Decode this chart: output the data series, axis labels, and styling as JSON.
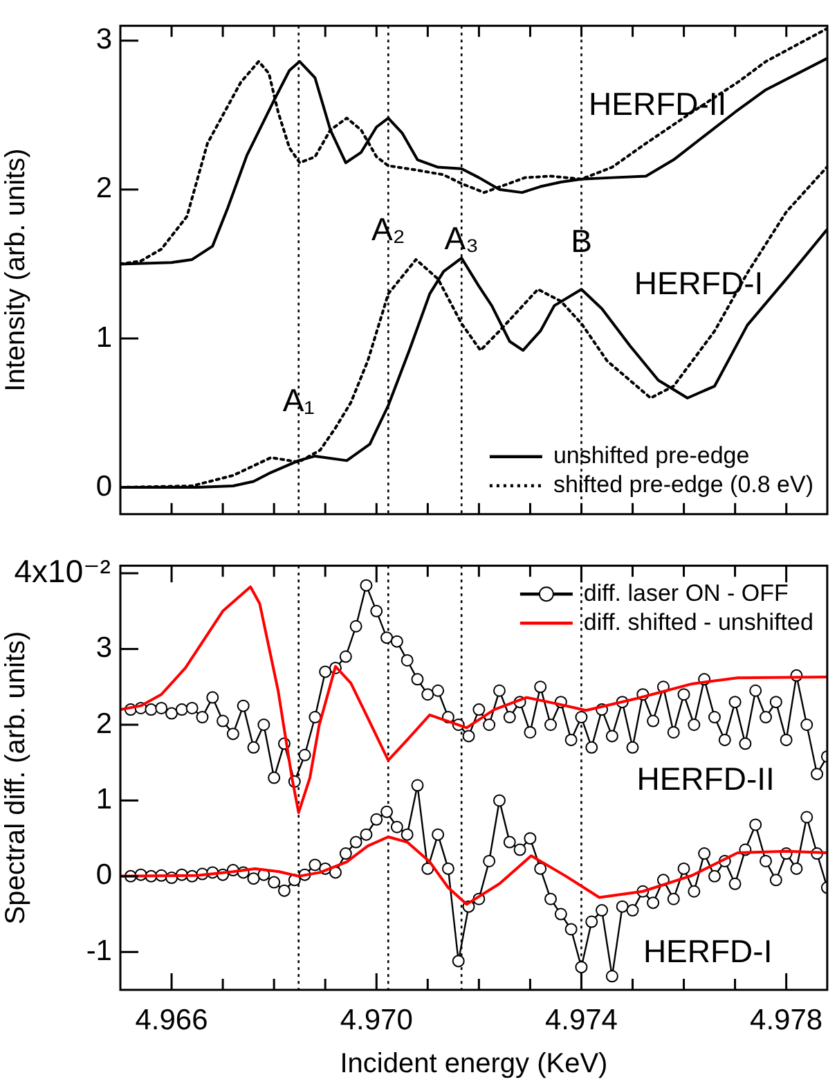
{
  "chart_data": [
    {
      "type": "line",
      "ylabel": "Intensity (arb. units)",
      "xlim": [
        4.965,
        4.9788
      ],
      "ylim": [
        -0.18,
        3.1
      ],
      "xticks": [
        {
          "value": 4.966,
          "label": null
        },
        {
          "value": 4.967,
          "label": null
        },
        {
          "value": 4.968,
          "label": null
        },
        {
          "value": 4.969,
          "label": null
        },
        {
          "value": 4.97,
          "label": null
        },
        {
          "value": 4.971,
          "label": null
        },
        {
          "value": 4.972,
          "label": null
        },
        {
          "value": 4.973,
          "label": null
        },
        {
          "value": 4.974,
          "label": null
        },
        {
          "value": 4.975,
          "label": null
        },
        {
          "value": 4.976,
          "label": null
        },
        {
          "value": 4.977,
          "label": null
        },
        {
          "value": 4.978,
          "label": null
        }
      ],
      "yticks": [
        0,
        1,
        2,
        3
      ],
      "tick_labels": "y",
      "grid": false,
      "legend": "bottom right",
      "ref_lines": [
        {
          "axis": "x",
          "value": 4.96848,
          "line_style": "dotted",
          "color": "#000000"
        },
        {
          "axis": "x",
          "value": 4.97023,
          "line_style": "dotted",
          "color": "#000000"
        },
        {
          "axis": "x",
          "value": 4.97166,
          "line_style": "dotted",
          "color": "#000000"
        },
        {
          "axis": "x",
          "value": 4.974,
          "line_style": "dotted",
          "color": "#000000"
        }
      ],
      "annotations": [
        {
          "text": "A₁",
          "x": 4.96848,
          "y": 0.57
        },
        {
          "text": "A₂",
          "x": 4.97023,
          "y": 1.72
        },
        {
          "text": "A₃",
          "x": 4.97166,
          "y": 1.66
        },
        {
          "text": "B",
          "x": 4.974,
          "y": 1.64
        },
        "HERFD-II",
        "HERFD-I"
      ],
      "series": [
        {
          "type": "line",
          "color": "#000000",
          "line_style": "solid",
          "x": [
            4.965,
            4.966,
            4.9664,
            4.9668,
            4.9671,
            4.96747,
            4.968,
            4.9683,
            4.9685,
            4.9688,
            4.9691,
            4.9694,
            4.9697,
            4.97,
            4.97023,
            4.9705,
            4.9708,
            4.9712,
            4.97166,
            4.972,
            4.9724,
            4.97284,
            4.9732,
            4.9736,
            4.974,
            4.9746,
            4.97526,
            4.9758,
            4.9764,
            4.977,
            4.9776,
            4.97879
          ],
          "values": [
            1.5,
            1.51,
            1.53,
            1.62,
            1.88,
            2.23,
            2.6,
            2.8,
            2.86,
            2.75,
            2.4,
            2.18,
            2.25,
            2.42,
            2.48,
            2.38,
            2.2,
            2.15,
            2.14,
            2.08,
            2.0,
            1.98,
            2.02,
            2.05,
            2.07,
            2.08,
            2.09,
            2.2,
            2.36,
            2.52,
            2.67,
            2.88
          ]
        },
        {
          "type": "line",
          "color": "#000000",
          "line_style": "dotted",
          "x": [
            4.965,
            4.9654,
            4.9658,
            4.9663,
            4.9667,
            4.96735,
            4.9677,
            4.9679,
            4.96808,
            4.9683,
            4.9685,
            4.9688,
            4.9691,
            4.96942,
            4.9697,
            4.97,
            4.97023,
            4.9708,
            4.9713,
            4.97166,
            4.9721,
            4.9725,
            4.9729,
            4.9734,
            4.974,
            4.9746,
            4.97526,
            4.97616,
            4.97705,
            4.9776,
            4.97879
          ],
          "values": [
            1.5,
            1.52,
            1.6,
            1.82,
            2.31,
            2.72,
            2.86,
            2.78,
            2.52,
            2.28,
            2.18,
            2.22,
            2.4,
            2.48,
            2.4,
            2.22,
            2.16,
            2.13,
            2.1,
            2.04,
            1.98,
            2.03,
            2.08,
            2.09,
            2.07,
            2.15,
            2.31,
            2.52,
            2.72,
            2.86,
            3.08
          ]
        },
        {
          "type": "line",
          "name": "unshifted pre-edge",
          "color": "#000000",
          "line_style": "solid",
          "x": [
            4.965,
            4.9665,
            4.9672,
            4.9676,
            4.96794,
            4.96848,
            4.9688,
            4.96942,
            4.96987,
            4.97023,
            4.97064,
            4.97104,
            4.97131,
            4.97166,
            4.972,
            4.97225,
            4.9726,
            4.97286,
            4.9732,
            4.97347,
            4.974,
            4.9744,
            4.97495,
            4.9755,
            4.97607,
            4.9766,
            4.97724,
            4.97805,
            4.97879
          ],
          "values": [
            0,
            0,
            0.01,
            0.04,
            0.1,
            0.18,
            0.21,
            0.18,
            0.29,
            0.55,
            0.92,
            1.3,
            1.45,
            1.54,
            1.35,
            1.22,
            0.98,
            0.92,
            1.05,
            1.22,
            1.33,
            1.2,
            0.95,
            0.72,
            0.6,
            0.68,
            1.09,
            1.42,
            1.73
          ]
        },
        {
          "type": "line",
          "name": "shifted pre-edge (0.8 eV)",
          "color": "#000000",
          "line_style": "dotted",
          "x": [
            4.965,
            4.9664,
            4.9672,
            4.96794,
            4.96848,
            4.9689,
            4.9692,
            4.9695,
            4.96983,
            4.97023,
            4.97077,
            4.9712,
            4.97166,
            4.97203,
            4.9724,
            4.97315,
            4.9736,
            4.974,
            4.9745,
            4.97535,
            4.9758,
            4.9766,
            4.97724,
            4.978,
            4.97879
          ],
          "values": [
            0,
            0.01,
            0.08,
            0.2,
            0.17,
            0.25,
            0.4,
            0.57,
            0.85,
            1.3,
            1.53,
            1.4,
            1.1,
            0.92,
            1.05,
            1.33,
            1.25,
            1.1,
            0.85,
            0.6,
            0.68,
            1.05,
            1.44,
            1.85,
            2.15
          ]
        }
      ]
    },
    {
      "type": "line",
      "xlabel": "Incident energy (KeV)",
      "ylabel": "Spectral diff. (arb. units)",
      "xlim": [
        4.965,
        4.9788
      ],
      "ylim": [
        -1.5,
        4.1
      ],
      "xticks": [
        {
          "value": 4.966,
          "label": "4.966"
        },
        {
          "value": 4.967,
          "label": null
        },
        {
          "value": 4.968,
          "label": null
        },
        {
          "value": 4.969,
          "label": null
        },
        {
          "value": 4.97,
          "label": "4.970"
        },
        {
          "value": 4.971,
          "label": null
        },
        {
          "value": 4.972,
          "label": null
        },
        {
          "value": 4.973,
          "label": null
        },
        {
          "value": 4.974,
          "label": "4.974"
        },
        {
          "value": 4.975,
          "label": null
        },
        {
          "value": 4.976,
          "label": null
        },
        {
          "value": 4.977,
          "label": null
        },
        {
          "value": 4.978,
          "label": "4.978"
        }
      ],
      "yticks": [
        -1,
        0,
        1,
        2,
        3,
        {
          "value": 4,
          "label": null
        }
      ],
      "grid": false,
      "legend": "top right",
      "ref_lines": [
        {
          "axis": "x",
          "value": 4.96848,
          "line_style": "dotted",
          "color": "#000000"
        },
        {
          "axis": "x",
          "value": 4.97023,
          "line_style": "dotted",
          "color": "#000000"
        },
        {
          "axis": "x",
          "value": 4.97166,
          "line_style": "dotted",
          "color": "#000000"
        },
        {
          "axis": "x",
          "value": 4.974,
          "line_style": "dotted",
          "color": "#000000"
        }
      ],
      "annotations": [
        "HERFD-II",
        "HERFD-I",
        "4x10⁻²"
      ],
      "series": [
        {
          "type": "line",
          "name": "diff. laser ON - OFF",
          "color": "#000000",
          "marker": "circle",
          "x": [
            4.9652,
            4.9654,
            4.9656,
            4.9658,
            4.966,
            4.9662,
            4.9664,
            4.9666,
            4.9668,
            4.967,
            4.9672,
            4.9674,
            4.9676,
            4.9678,
            4.968,
            4.9682,
            4.9684,
            4.9686,
            4.9688,
            4.969,
            4.9692,
            4.9694,
            4.9696,
            4.9698,
            4.97,
            4.9702,
            4.9704,
            4.9706,
            4.9708,
            4.971,
            4.9712,
            4.9714,
            4.9716,
            4.9718,
            4.972,
            4.9722,
            4.9724,
            4.9726,
            4.9728,
            4.973,
            4.9732,
            4.9734,
            4.9736,
            4.9738,
            4.974,
            4.9742,
            4.9744,
            4.9746,
            4.9748,
            4.975,
            4.9752,
            4.9754,
            4.9756,
            4.9758,
            4.976,
            4.9762,
            4.9764,
            4.9766,
            4.9768,
            4.977,
            4.9772,
            4.9774,
            4.9776,
            4.9778,
            4.978,
            4.9782,
            4.9784,
            4.9786,
            4.9788
          ],
          "values": [
            2.2,
            2.22,
            2.2,
            2.22,
            2.15,
            2.2,
            2.22,
            2.1,
            2.36,
            2.05,
            1.88,
            2.25,
            1.7,
            2.0,
            1.3,
            1.75,
            1.25,
            1.6,
            2.1,
            2.7,
            2.75,
            2.9,
            3.3,
            3.84,
            3.5,
            3.15,
            3.1,
            2.85,
            2.6,
            2.4,
            2.45,
            2.1,
            2.0,
            1.85,
            2.2,
            2.0,
            2.45,
            2.1,
            2.3,
            1.9,
            2.5,
            2.0,
            2.3,
            1.8,
            2.1,
            1.7,
            2.2,
            1.85,
            2.3,
            1.7,
            2.4,
            2.05,
            2.5,
            1.9,
            2.4,
            2.0,
            2.6,
            2.1,
            1.8,
            2.3,
            1.75,
            2.45,
            2.1,
            2.3,
            1.8,
            2.65,
            2.0,
            1.35,
            1.58
          ]
        },
        {
          "type": "line",
          "color": "#000000",
          "marker": "circle",
          "x": [
            4.9652,
            4.9654,
            4.9656,
            4.9658,
            4.966,
            4.9662,
            4.9664,
            4.9666,
            4.9668,
            4.967,
            4.9672,
            4.9674,
            4.9676,
            4.9678,
            4.968,
            4.9682,
            4.9684,
            4.9686,
            4.9688,
            4.969,
            4.9692,
            4.9694,
            4.9696,
            4.9698,
            4.97,
            4.9702,
            4.9704,
            4.9706,
            4.9708,
            4.971,
            4.9712,
            4.9714,
            4.9716,
            4.9718,
            4.972,
            4.9722,
            4.9724,
            4.9726,
            4.9728,
            4.973,
            4.9732,
            4.9734,
            4.9736,
            4.9738,
            4.974,
            4.9742,
            4.9744,
            4.9746,
            4.9748,
            4.975,
            4.9752,
            4.9754,
            4.9756,
            4.9758,
            4.976,
            4.9762,
            4.9764,
            4.9766,
            4.9768,
            4.977,
            4.9772,
            4.9774,
            4.9776,
            4.9778,
            4.978,
            4.9782,
            4.9784,
            4.9786,
            4.9788
          ],
          "values": [
            0,
            0.02,
            0,
            0.01,
            -0.02,
            0.02,
            0,
            0.03,
            0.05,
            0.02,
            0.08,
            0.05,
            -0.03,
            0.02,
            -0.08,
            -0.19,
            -0.05,
            0.02,
            0.15,
            0.1,
            0.05,
            0.3,
            0.45,
            0.55,
            0.75,
            0.85,
            0.65,
            0.55,
            1.2,
            0.1,
            0.55,
            0.1,
            -1.12,
            -0.4,
            -0.3,
            0.2,
            1.0,
            0.45,
            0.35,
            0.5,
            0.1,
            -0.3,
            -0.5,
            -0.7,
            -1.2,
            -0.6,
            -0.45,
            -1.32,
            -0.4,
            -0.45,
            -0.2,
            -0.35,
            -0.05,
            -0.3,
            0.1,
            -0.2,
            0.3,
            0.0,
            0.2,
            -0.1,
            0.35,
            0.68,
            0.2,
            -0.05,
            0.3,
            0.1,
            0.78,
            0.3,
            -0.15
          ]
        },
        {
          "type": "line",
          "name": "diff. shifted - unshifted",
          "color": "#ff0000",
          "x": [
            4.965,
            4.9654,
            4.9658,
            4.96627,
            4.967,
            4.96754,
            4.96772,
            4.96808,
            4.96835,
            4.96848,
            4.9687,
            4.96888,
            4.9692,
            4.9695,
            4.96978,
            4.97023,
            4.9706,
            4.97104,
            4.97176,
            4.9723,
            4.97293,
            4.9735,
            4.97409,
            4.9751,
            4.97616,
            4.97705,
            4.9788
          ],
          "values": [
            2.2,
            2.25,
            2.4,
            2.75,
            3.5,
            3.82,
            3.6,
            2.45,
            1.3,
            0.84,
            1.3,
            1.99,
            2.77,
            2.55,
            2.16,
            1.53,
            1.8,
            2.13,
            1.96,
            2.2,
            2.36,
            2.28,
            2.19,
            2.35,
            2.54,
            2.62,
            2.63
          ]
        },
        {
          "type": "line",
          "color": "#ff0000",
          "x": [
            4.965,
            4.9665,
            4.9672,
            4.96763,
            4.9681,
            4.96848,
            4.9689,
            4.96942,
            4.96983,
            4.97023,
            4.9706,
            4.97104,
            4.9714,
            4.97176,
            4.9724,
            4.97302,
            4.9737,
            4.97435,
            4.9752,
            4.97616,
            4.97705,
            4.978,
            4.9788
          ],
          "values": [
            0,
            0.01,
            0.06,
            0.1,
            0.06,
            0.0,
            0.05,
            0.19,
            0.4,
            0.52,
            0.45,
            0.19,
            -0.15,
            -0.37,
            -0.1,
            0.27,
            0.0,
            -0.28,
            -0.2,
            0.01,
            0.31,
            0.33,
            0.31
          ]
        }
      ]
    }
  ]
}
